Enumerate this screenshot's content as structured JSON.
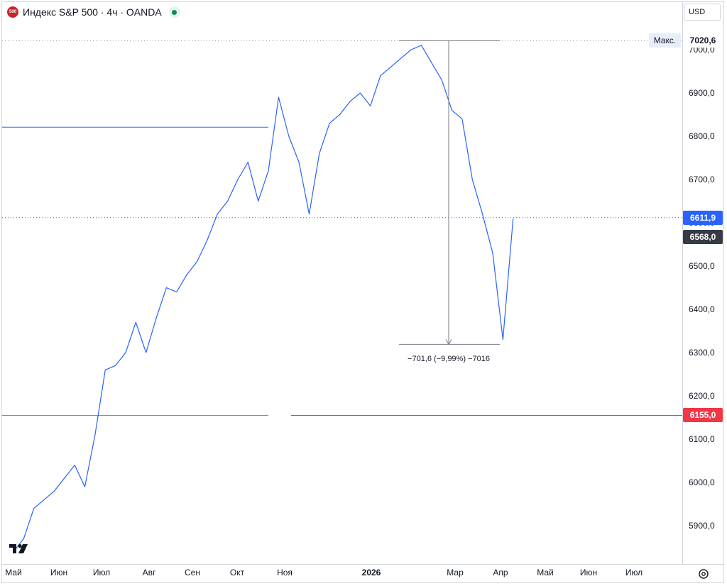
{
  "header": {
    "logo_text": "500",
    "title": "Индекс S&P 500 · 4ч · OANDA"
  },
  "currency": "USD",
  "colors": {
    "line": "#2962ff",
    "blue_level": "#2962ff",
    "green_level": "#4caf50",
    "red_level": "#f23645",
    "current_tag": "#2962ff",
    "close_tag": "#363a45",
    "red_tag": "#f23645"
  },
  "price_tags": {
    "max_label": "Макс.",
    "max_value": "7020,6",
    "current": "6611,9",
    "close": "6568,0",
    "level_red": "6155,0"
  },
  "measure": {
    "label": "−701,6 (−9,99%) −7016"
  },
  "chart_data": {
    "type": "line",
    "title": "",
    "xlabel": "",
    "ylabel": "",
    "y_axis_side": "right",
    "ylim": [
      5830,
      7080
    ],
    "grid": false,
    "y_ticks": [
      "5900,0",
      "6000,0",
      "6100,0",
      "6200,0",
      "6300,0",
      "6400,0",
      "6500,0",
      "6600,0",
      "6700,0",
      "6800,0",
      "6900,0",
      "7000,0"
    ],
    "x_ticks": [
      "Май",
      "Июн",
      "Июл",
      "Авг",
      "Сен",
      "Окт",
      "Ноя",
      "2026",
      "Мар",
      "Апр",
      "Май",
      "Июн",
      "Июл"
    ],
    "x_ticks_bold": [
      "2026"
    ],
    "horizontal_levels": [
      {
        "value": 6821,
        "color": "blue"
      },
      {
        "value": 6155,
        "color": "green"
      },
      {
        "value": 6155,
        "color": "red"
      },
      {
        "value": 7020.6,
        "color": "dotted-gray"
      },
      {
        "value": 6611.9,
        "color": "dotted-blue"
      }
    ],
    "series": [
      {
        "x": [
          "2025-05-01",
          "2025-05-08",
          "2025-05-15",
          "2025-05-22",
          "2025-05-29",
          "2025-06-05",
          "2025-06-12",
          "2025-06-19",
          "2025-06-26",
          "2025-07-03",
          "2025-07-10",
          "2025-07-17",
          "2025-07-24",
          "2025-07-31",
          "2025-08-07",
          "2025-08-14",
          "2025-08-21",
          "2025-08-28",
          "2025-09-04",
          "2025-09-11",
          "2025-09-18",
          "2025-09-25",
          "2025-10-02",
          "2025-10-09",
          "2025-10-16",
          "2025-10-23",
          "2025-10-30",
          "2025-11-06",
          "2025-11-13",
          "2025-11-20",
          "2025-11-27",
          "2025-12-04",
          "2025-12-11",
          "2025-12-18",
          "2025-12-25",
          "2026-01-01",
          "2026-01-08",
          "2026-01-15",
          "2026-01-22",
          "2026-01-29",
          "2026-02-05",
          "2026-02-12",
          "2026-02-19",
          "2026-02-26",
          "2026-03-05",
          "2026-03-12",
          "2026-03-19",
          "2026-03-26",
          "2026-04-02",
          "2026-04-09"
        ],
        "values": [
          5840,
          5870,
          5940,
          5960,
          5980,
          6010,
          6040,
          5990,
          6110,
          6260,
          6270,
          6300,
          6370,
          6300,
          6380,
          6450,
          6440,
          6480,
          6510,
          6560,
          6620,
          6650,
          6700,
          6740,
          6650,
          6720,
          6890,
          6800,
          6740,
          6620,
          6760,
          6830,
          6850,
          6880,
          6900,
          6870,
          6940,
          6960,
          6980,
          7000,
          7010,
          6970,
          6930,
          6860,
          6840,
          6700,
          6620,
          6530,
          6330,
          6610
        ]
      }
    ]
  }
}
